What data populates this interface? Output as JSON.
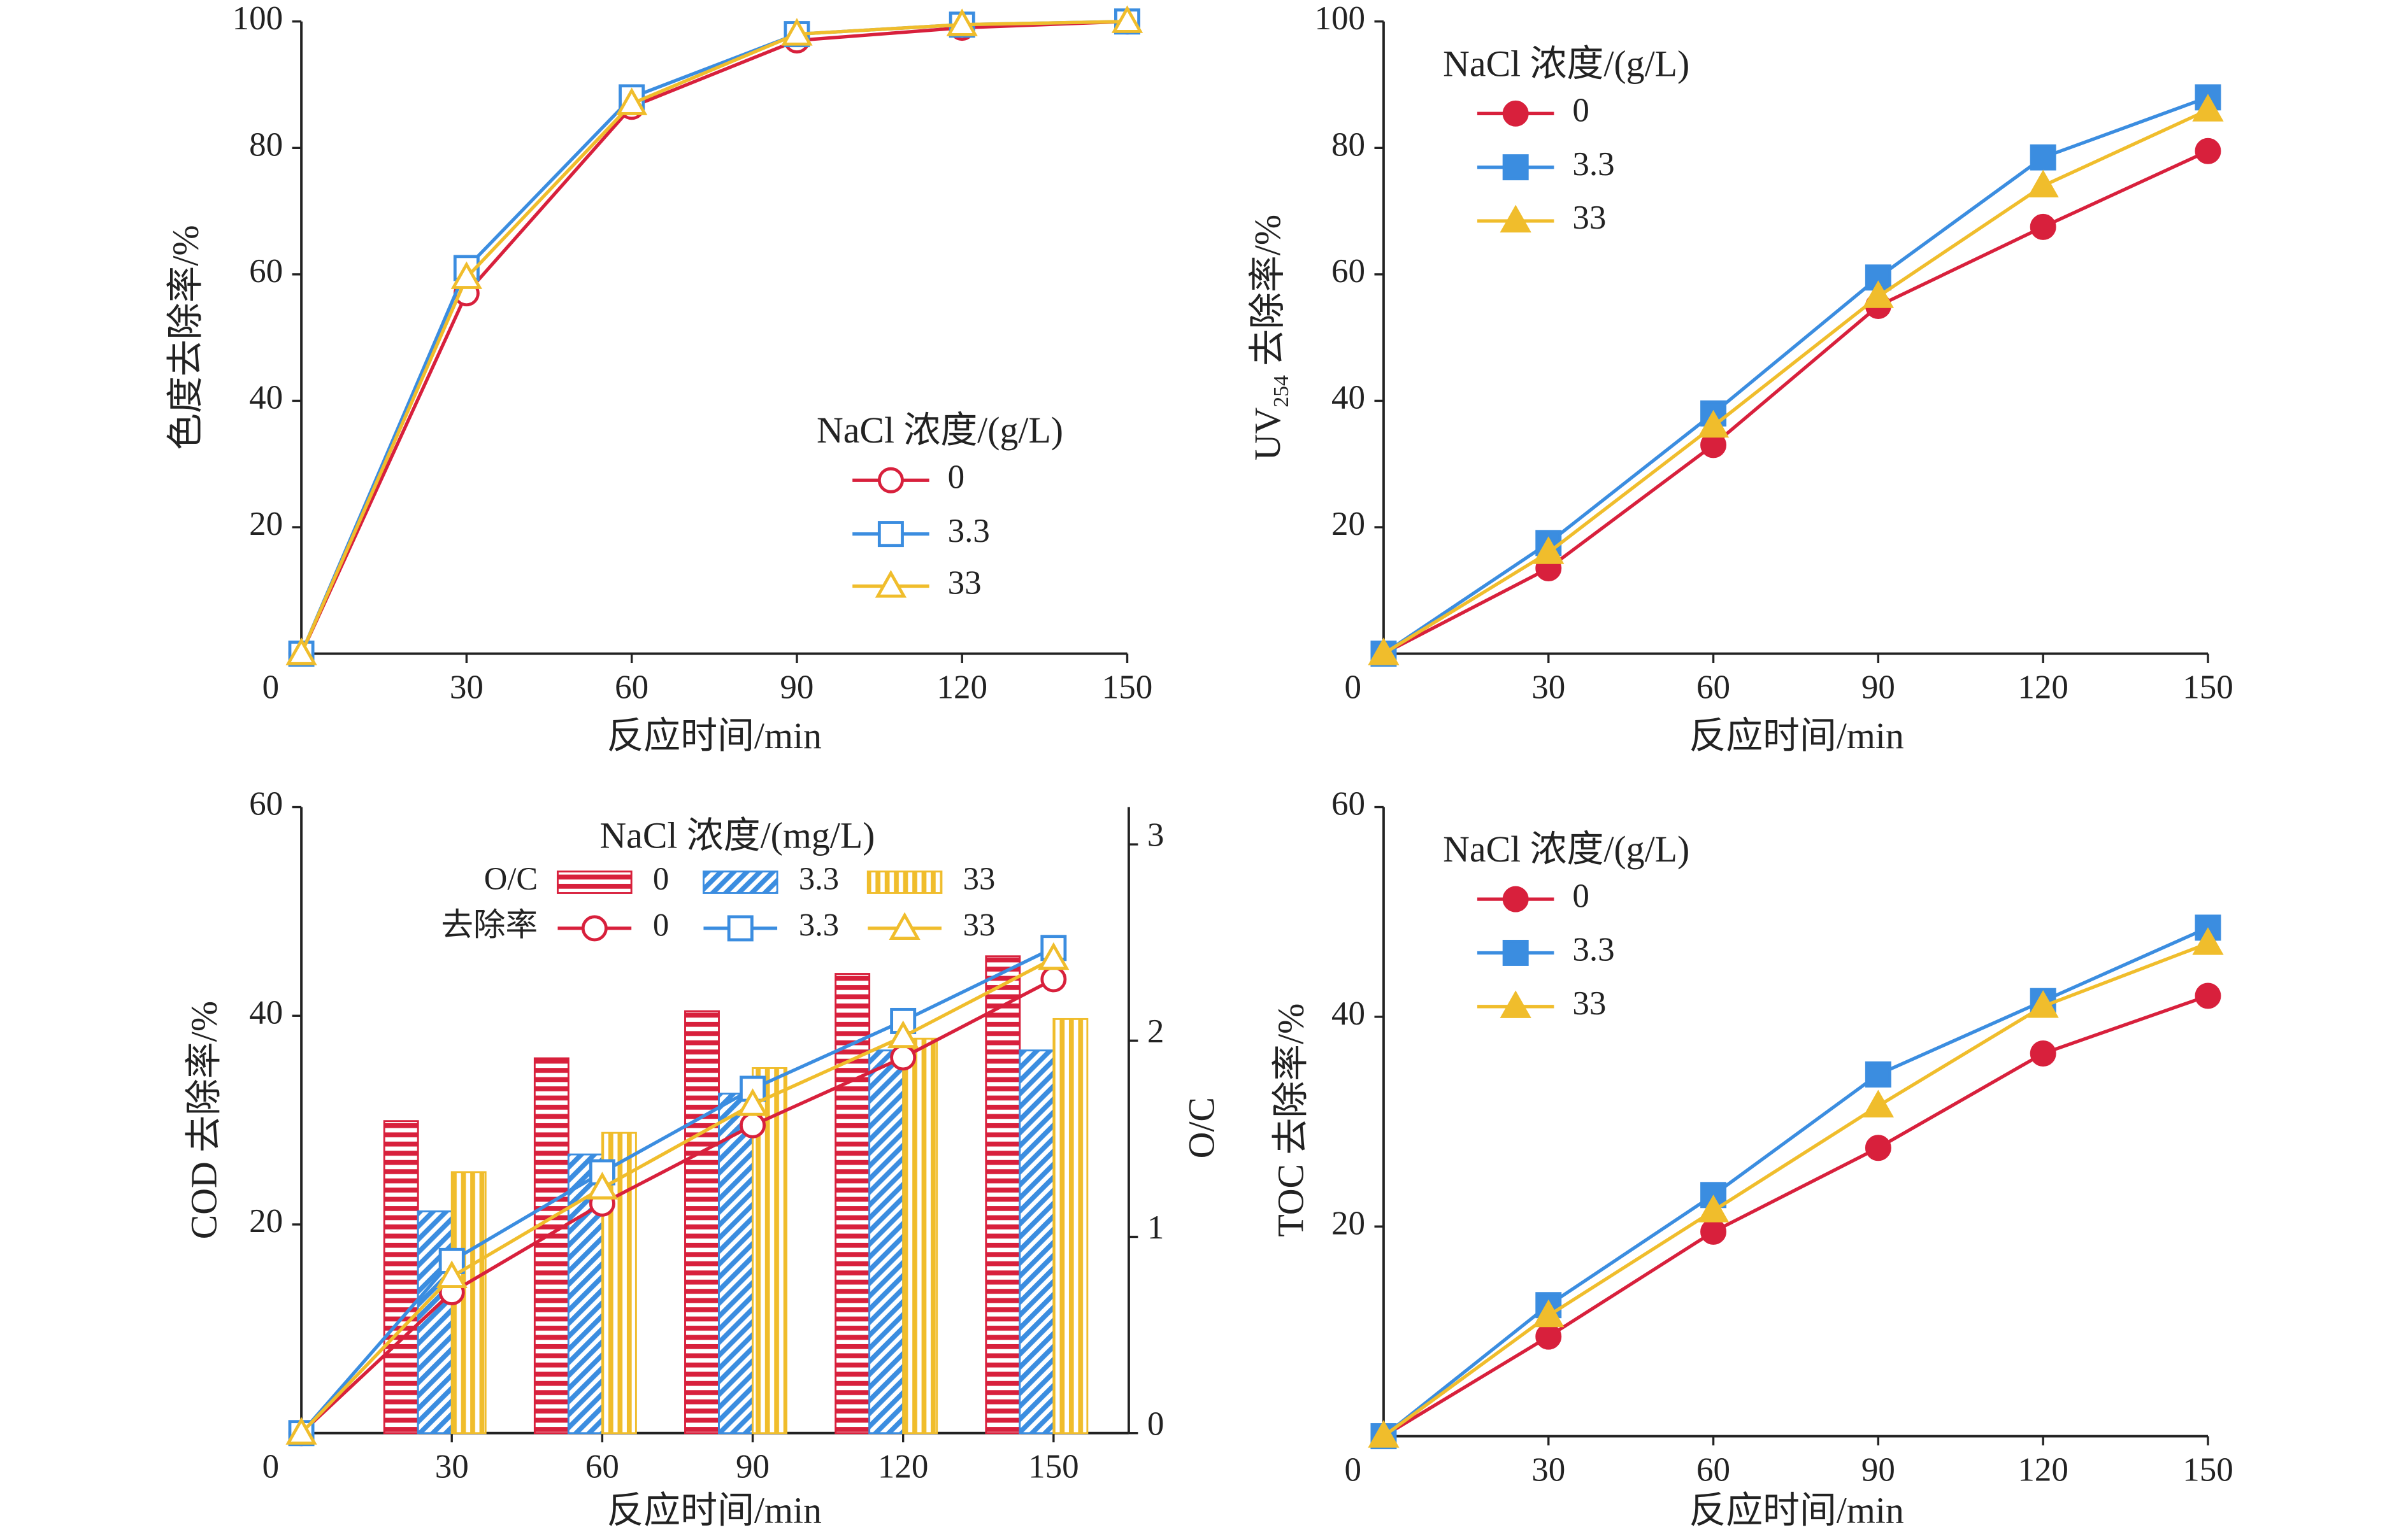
{
  "chart_data": [
    {
      "type": "line",
      "x_label": "反应时间/min",
      "y_label": "色度去除率/%",
      "legend_title": "NaCl 浓度/(g/L)",
      "x": [
        0,
        30,
        60,
        90,
        120,
        150
      ],
      "xlim": [
        0,
        150
      ],
      "xticks": [
        0,
        30,
        60,
        90,
        120,
        150
      ],
      "ylim": [
        0,
        100
      ],
      "yticks": [
        20,
        40,
        60,
        80,
        100
      ],
      "markers_filled": false,
      "series": [
        {
          "name": "0",
          "color": "#d8203c",
          "marker": "circle",
          "values": [
            0,
            57,
            86.5,
            97,
            99,
            100
          ]
        },
        {
          "name": "3.3",
          "color": "#3b8de0",
          "marker": "square",
          "values": [
            0,
            61,
            88,
            98,
            99.5,
            100
          ]
        },
        {
          "name": "33",
          "color": "#f0bd2c",
          "marker": "triangle",
          "values": [
            0,
            59.5,
            87,
            98,
            99.5,
            100
          ]
        }
      ]
    },
    {
      "type": "line",
      "x_label": "反应时间/min",
      "y_label_parts": [
        "UV",
        "254",
        " 去除率/%"
      ],
      "legend_title": "NaCl 浓度/(g/L)",
      "x": [
        0,
        30,
        60,
        90,
        120,
        150
      ],
      "xlim": [
        0,
        150
      ],
      "xticks": [
        0,
        30,
        60,
        90,
        120,
        150
      ],
      "ylim": [
        0,
        100
      ],
      "yticks": [
        20,
        40,
        60,
        80,
        100
      ],
      "markers_filled": true,
      "series": [
        {
          "name": "0",
          "color": "#d8203c",
          "marker": "circle",
          "values": [
            0,
            13.5,
            33,
            55,
            67.5,
            79.5
          ]
        },
        {
          "name": "3.3",
          "color": "#3b8de0",
          "marker": "square",
          "values": [
            0,
            17.5,
            38,
            59.5,
            78.5,
            88
          ]
        },
        {
          "name": "33",
          "color": "#f0bd2c",
          "marker": "triangle",
          "values": [
            0,
            16,
            36,
            56.5,
            74,
            86
          ]
        }
      ]
    },
    {
      "type": "combo",
      "x_label": "反应时间/min",
      "y_label": "COD 去除率/%",
      "y2_label": "O/C",
      "legend_title": "NaCl 浓度/(mg/L)",
      "legend_row_labels": [
        "O/C",
        "去除率"
      ],
      "x": [
        0,
        30,
        60,
        90,
        120,
        150
      ],
      "xlim": [
        0,
        165
      ],
      "xticks": [
        0,
        30,
        60,
        90,
        120,
        150
      ],
      "ylim": [
        0,
        60
      ],
      "yticks": [
        20,
        40,
        60
      ],
      "y2lim": [
        0,
        3.19
      ],
      "y2ticks": [
        0,
        1,
        2,
        3
      ],
      "markers_filled": false,
      "series": [
        {
          "name": "0",
          "color": "#d8203c",
          "kind": "bar",
          "hatch": "horizontal",
          "axis": "y2",
          "values": [
            null,
            1.59,
            1.91,
            2.15,
            2.34,
            2.43
          ]
        },
        {
          "name": "3.3",
          "color": "#3b8de0",
          "kind": "bar",
          "hatch": "diagonal",
          "axis": "y2",
          "values": [
            null,
            1.13,
            1.42,
            1.73,
            1.95,
            1.95
          ]
        },
        {
          "name": "33",
          "color": "#f0bd2c",
          "kind": "bar",
          "hatch": "vertical",
          "axis": "y2",
          "values": [
            null,
            1.33,
            1.53,
            1.86,
            2.01,
            2.11
          ]
        },
        {
          "name": "0",
          "color": "#d8203c",
          "kind": "line",
          "marker": "circle",
          "values": [
            0,
            13.5,
            22,
            29.5,
            36,
            43.5
          ]
        },
        {
          "name": "3.3",
          "color": "#3b8de0",
          "kind": "line",
          "marker": "square",
          "values": [
            0,
            16.5,
            25,
            33,
            39.5,
            46.5
          ]
        },
        {
          "name": "33",
          "color": "#f0bd2c",
          "kind": "line",
          "marker": "triangle",
          "values": [
            0,
            15,
            23.5,
            31.5,
            38,
            45.5
          ]
        }
      ]
    },
    {
      "type": "line",
      "x_label": "反应时间/min",
      "y_label": "TOC 去除率/%",
      "legend_title": "NaCl 浓度/(g/L)",
      "x": [
        0,
        30,
        60,
        90,
        120,
        150
      ],
      "xlim": [
        0,
        150
      ],
      "xticks": [
        0,
        30,
        60,
        90,
        120,
        150
      ],
      "ylim": [
        0,
        60
      ],
      "yticks": [
        20,
        40,
        60
      ],
      "markers_filled": true,
      "series": [
        {
          "name": "0",
          "color": "#d8203c",
          "marker": "circle",
          "values": [
            0,
            9.5,
            19.5,
            27.5,
            36.5,
            42
          ]
        },
        {
          "name": "3.3",
          "color": "#3b8de0",
          "marker": "square",
          "values": [
            0,
            12.5,
            23,
            34.5,
            41.5,
            48.5
          ]
        },
        {
          "name": "33",
          "color": "#f0bd2c",
          "marker": "triangle",
          "values": [
            0,
            11.5,
            21.5,
            31.5,
            41,
            47
          ]
        }
      ]
    }
  ]
}
